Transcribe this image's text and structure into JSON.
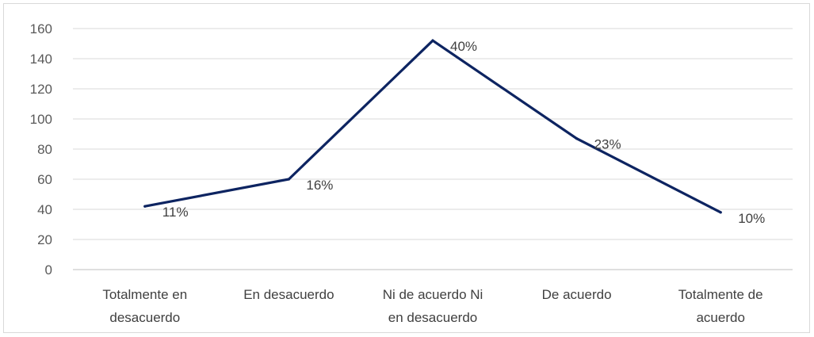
{
  "chart_data": {
    "type": "line",
    "title": "",
    "xlabel": "",
    "ylabel": "",
    "categories": [
      [
        "Totalmente en",
        "desacuerdo"
      ],
      [
        "En desacuerdo"
      ],
      [
        "Ni de acuerdo Ni",
        "en desacuerdo"
      ],
      [
        "De acuerdo"
      ],
      [
        "Totalmente de",
        "acuerdo"
      ]
    ],
    "series": [
      {
        "values": [
          42,
          60,
          152,
          87,
          38
        ],
        "data_labels": [
          "11%",
          "16%",
          "40%",
          "23%",
          "10%"
        ],
        "color": "#0d2461"
      }
    ],
    "ylim": [
      0,
      160
    ],
    "yticks": [
      0,
      20,
      40,
      60,
      80,
      100,
      120,
      140,
      160
    ],
    "grid": true,
    "legend": "none"
  }
}
